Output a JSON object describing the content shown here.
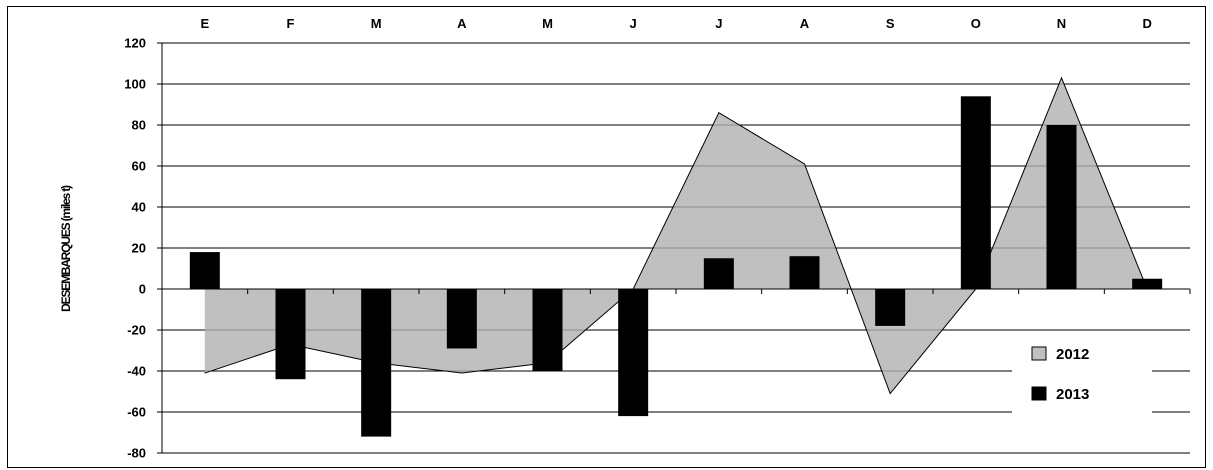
{
  "chart_data": {
    "type": "bar",
    "categories": [
      "E",
      "F",
      "M",
      "A",
      "M",
      "J",
      "J",
      "A",
      "S",
      "O",
      "N",
      "D"
    ],
    "ylabel": "DESEMBARQUES (miles t)",
    "ylim": [
      -80,
      120
    ],
    "yticks": [
      -80,
      -60,
      -40,
      -20,
      0,
      20,
      40,
      60,
      80,
      100,
      120
    ],
    "grid": true,
    "category_axis_position": "top",
    "legend_position": "bottom-right",
    "series": [
      {
        "name": "2012",
        "type": "area",
        "color": "#c0c0c0",
        "values": [
          -41,
          -27,
          -36,
          -41,
          -36,
          0,
          86,
          61,
          -51,
          0,
          103,
          0
        ]
      },
      {
        "name": "2013",
        "type": "bar",
        "color": "#000000",
        "values": [
          18,
          -44,
          -72,
          -29,
          -40,
          -62,
          15,
          16,
          -18,
          94,
          80,
          5
        ]
      }
    ]
  }
}
